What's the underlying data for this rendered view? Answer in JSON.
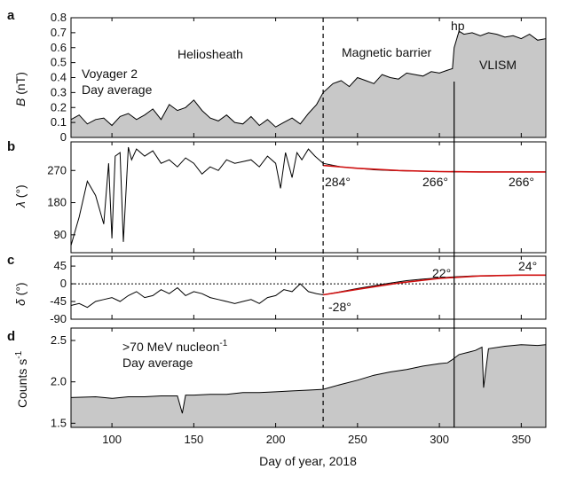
{
  "figure": {
    "x_axis": {
      "label": "Day of year, 2018",
      "range": [
        75,
        365
      ],
      "ticks": [
        100,
        150,
        200,
        250,
        300,
        350
      ]
    },
    "markers": {
      "dashed_day": 229,
      "hp_day": 309,
      "hp_label": "hp"
    }
  },
  "chart_data": [
    {
      "panel": "a",
      "type": "area",
      "ylabel_var": "B",
      "ylabel_unit": " (nT)",
      "ylim": [
        0,
        0.8
      ],
      "yticks": [
        "0",
        "0.1",
        "0.2",
        "0.3",
        "0.4",
        "0.5",
        "0.6",
        "0.7",
        "0.8"
      ],
      "annotations": {
        "title_line1": "Voyager 2",
        "title_line2": "Day average",
        "heliosheath": "Heliosheath",
        "magnetic_barrier": "Magnetic barrier",
        "vlism": "VLISM"
      },
      "x": [
        75,
        80,
        85,
        90,
        95,
        100,
        105,
        110,
        115,
        120,
        125,
        130,
        135,
        140,
        145,
        150,
        155,
        160,
        165,
        170,
        175,
        180,
        185,
        190,
        195,
        200,
        205,
        210,
        215,
        220,
        225,
        229,
        235,
        240,
        245,
        250,
        255,
        260,
        265,
        270,
        275,
        280,
        285,
        290,
        295,
        300,
        305,
        308,
        309,
        312,
        315,
        320,
        325,
        330,
        335,
        340,
        345,
        350,
        355,
        360,
        365
      ],
      "values": [
        0.12,
        0.15,
        0.09,
        0.12,
        0.13,
        0.08,
        0.14,
        0.16,
        0.12,
        0.15,
        0.19,
        0.12,
        0.22,
        0.18,
        0.2,
        0.25,
        0.18,
        0.13,
        0.11,
        0.15,
        0.1,
        0.09,
        0.14,
        0.08,
        0.12,
        0.07,
        0.1,
        0.13,
        0.09,
        0.16,
        0.22,
        0.3,
        0.36,
        0.38,
        0.34,
        0.4,
        0.38,
        0.36,
        0.42,
        0.4,
        0.39,
        0.43,
        0.42,
        0.41,
        0.44,
        0.43,
        0.45,
        0.46,
        0.6,
        0.71,
        0.69,
        0.7,
        0.68,
        0.7,
        0.69,
        0.67,
        0.68,
        0.66,
        0.69,
        0.65,
        0.66
      ]
    },
    {
      "panel": "b",
      "type": "line",
      "ylabel_var": "λ",
      "ylabel_unit": " (°)",
      "ylim": [
        40,
        350
      ],
      "yticks": [
        "90",
        "180",
        "270"
      ],
      "ytick_values": [
        90,
        180,
        270
      ],
      "x": [
        75,
        80,
        85,
        90,
        95,
        98,
        100,
        102,
        105,
        107,
        110,
        112,
        115,
        120,
        125,
        130,
        135,
        140,
        145,
        150,
        155,
        160,
        165,
        170,
        175,
        180,
        185,
        190,
        195,
        200,
        203,
        206,
        210,
        213,
        216,
        220,
        224,
        229,
        240,
        250,
        260,
        270,
        280,
        290,
        300,
        310,
        320,
        330,
        340,
        350,
        365
      ],
      "values": [
        60,
        140,
        240,
        200,
        120,
        290,
        80,
        310,
        320,
        70,
        335,
        300,
        330,
        310,
        325,
        290,
        300,
        280,
        305,
        290,
        260,
        280,
        270,
        300,
        290,
        295,
        300,
        280,
        310,
        290,
        220,
        320,
        250,
        320,
        300,
        330,
        310,
        290,
        280,
        276,
        272,
        270,
        269,
        268,
        267,
        266,
        266,
        266,
        266,
        266,
        266
      ],
      "fit_line": {
        "x": [
          229,
          250,
          275,
          300,
          325,
          350,
          365
        ],
        "values": [
          284,
          276,
          270,
          267,
          266,
          266,
          266
        ]
      },
      "annotations": [
        "284°",
        "266°",
        "266°"
      ]
    },
    {
      "panel": "c",
      "type": "line",
      "ylabel_var": "δ",
      "ylabel_unit": " (°)",
      "ylim": [
        -90,
        70
      ],
      "yticks": [
        "45",
        "0",
        "-45",
        "-90"
      ],
      "ytick_values": [
        45,
        0,
        -45,
        -90
      ],
      "x": [
        75,
        80,
        85,
        90,
        95,
        100,
        105,
        110,
        115,
        120,
        125,
        130,
        135,
        140,
        145,
        150,
        155,
        160,
        165,
        170,
        175,
        180,
        185,
        190,
        195,
        200,
        205,
        210,
        215,
        220,
        225,
        229,
        240,
        250,
        260,
        270,
        280,
        290,
        300,
        310,
        320,
        330,
        340,
        350,
        365
      ],
      "values": [
        -55,
        -50,
        -60,
        -45,
        -40,
        -35,
        -45,
        -30,
        -20,
        -35,
        -30,
        -15,
        -25,
        -10,
        -30,
        -20,
        -25,
        -35,
        -40,
        -45,
        -50,
        -45,
        -40,
        -50,
        -35,
        -30,
        -15,
        -20,
        0,
        -20,
        -25,
        -28,
        -20,
        -12,
        -5,
        2,
        8,
        12,
        15,
        18,
        20,
        20,
        21,
        22,
        22
      ],
      "fit_line": {
        "x": [
          229,
          250,
          275,
          300,
          325,
          350,
          365
        ],
        "values": [
          -28,
          -14,
          2,
          14,
          20,
          22,
          22
        ]
      },
      "annotations": [
        "22°",
        "24°",
        "-28°"
      ]
    },
    {
      "panel": "d",
      "type": "area",
      "ylabel_var": "Counts s",
      "ylabel_sup": "-1",
      "ylim": [
        1.45,
        2.65
      ],
      "yticks": [
        "1.5",
        "2.0",
        "2.5"
      ],
      "ytick_values": [
        1.5,
        2.0,
        2.5
      ],
      "annotations": {
        "label_line1": ">70 MeV nucleon",
        "label_sup": "-1",
        "label_line2": "Day average"
      },
      "x": [
        75,
        90,
        100,
        110,
        120,
        130,
        140,
        143,
        145,
        150,
        160,
        170,
        180,
        190,
        200,
        210,
        220,
        229,
        240,
        250,
        260,
        270,
        280,
        290,
        300,
        305,
        308,
        312,
        318,
        322,
        326,
        327,
        330,
        340,
        350,
        360,
        365
      ],
      "values": [
        1.81,
        1.82,
        1.8,
        1.82,
        1.82,
        1.83,
        1.83,
        1.62,
        1.84,
        1.84,
        1.85,
        1.85,
        1.87,
        1.87,
        1.88,
        1.89,
        1.9,
        1.91,
        1.97,
        2.02,
        2.08,
        2.12,
        2.15,
        2.19,
        2.22,
        2.23,
        2.27,
        2.33,
        2.36,
        2.38,
        2.42,
        1.93,
        2.4,
        2.43,
        2.45,
        2.44,
        2.45
      ]
    }
  ]
}
